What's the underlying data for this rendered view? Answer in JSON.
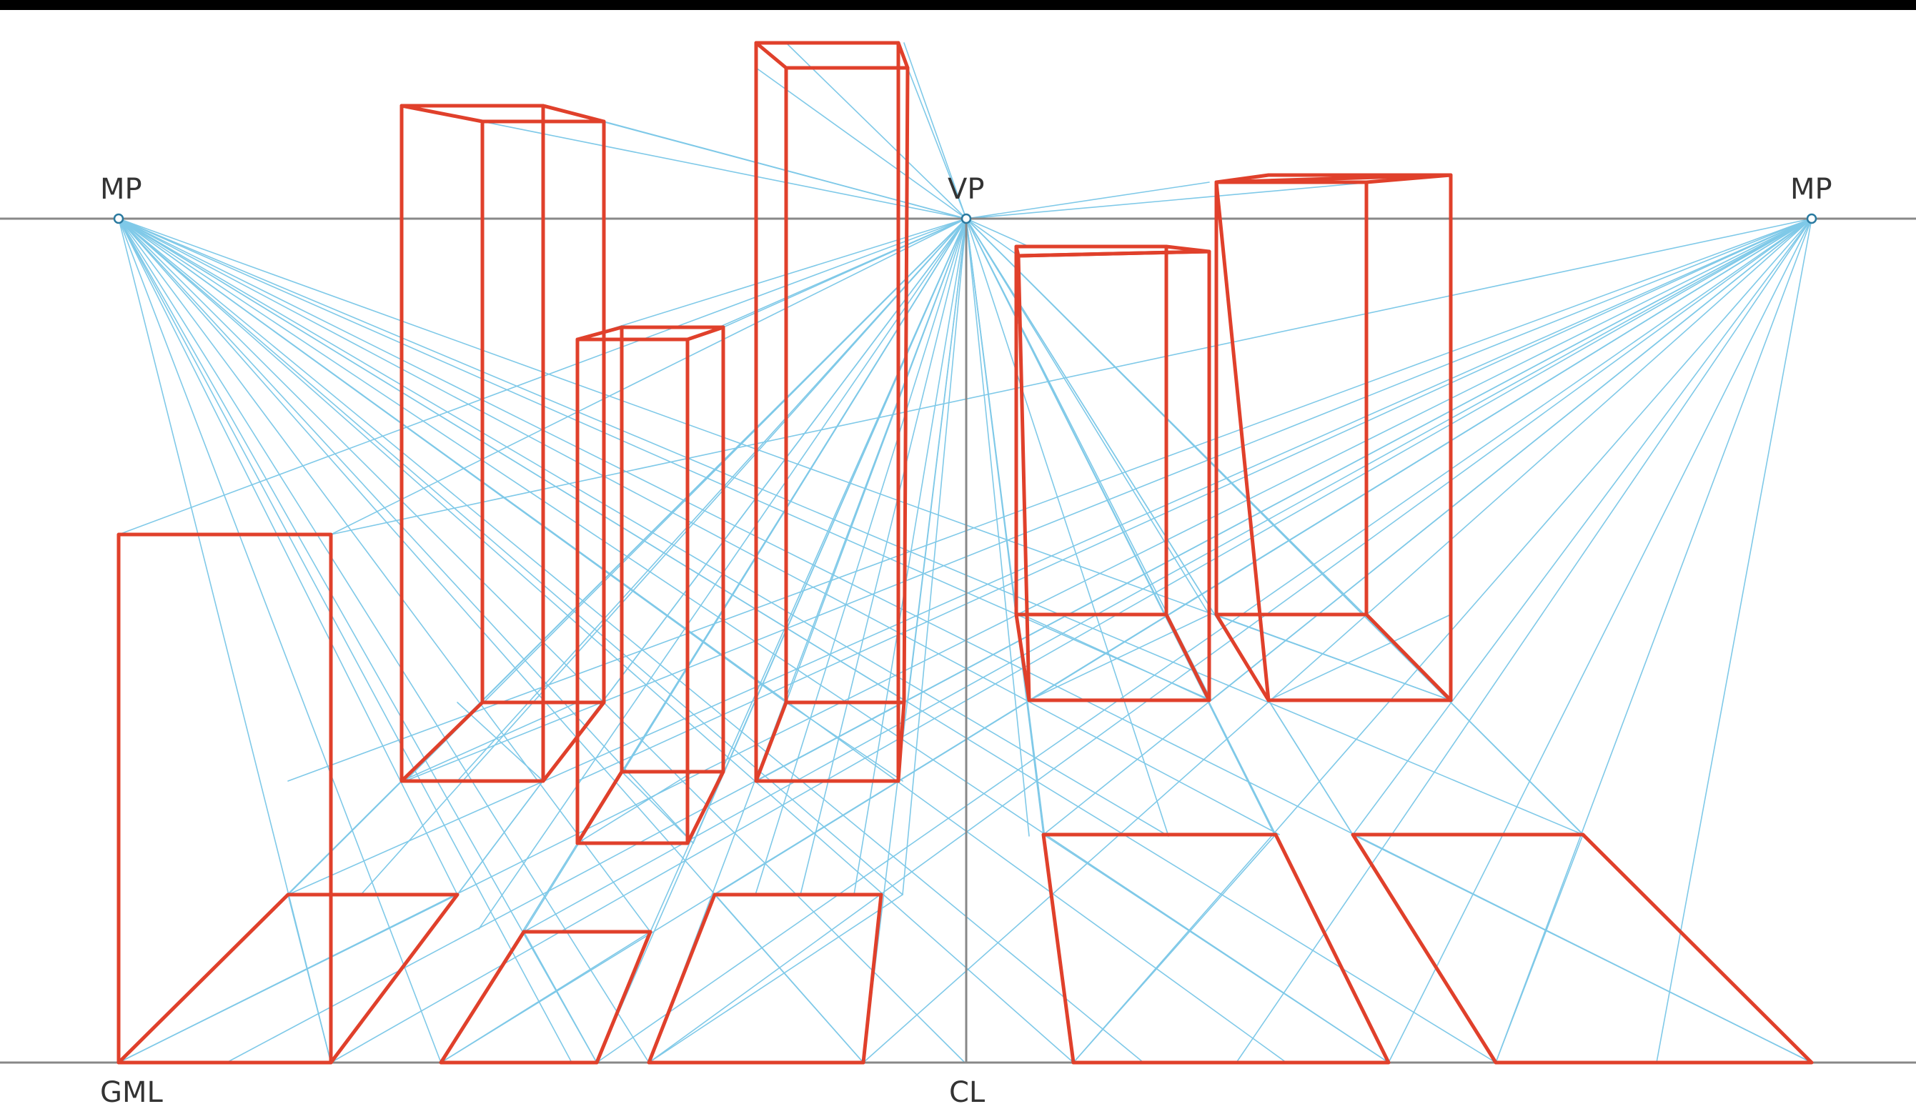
{
  "labels": {
    "mp_left": "MP",
    "vp": "VP",
    "mp_right": "MP",
    "gml": "GML",
    "cl": "CL"
  },
  "colors": {
    "background": "#000000",
    "sheet": "#ffffff",
    "reference_line": "#888888",
    "construction_line": "#7fc9e8",
    "box_edge": "#e0402b",
    "label_text": "#333333"
  },
  "legend": []
}
